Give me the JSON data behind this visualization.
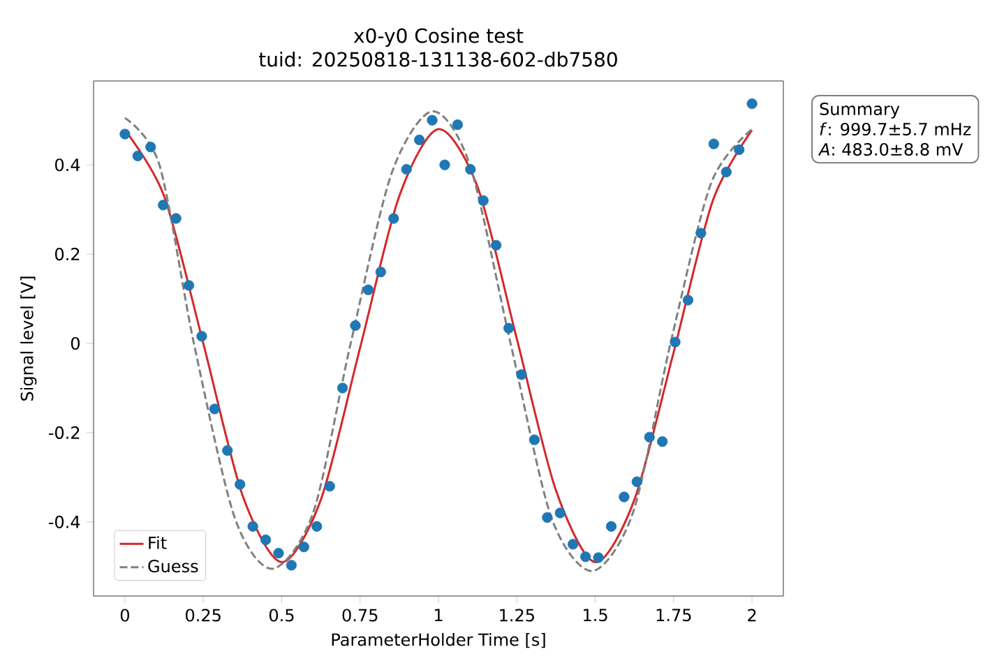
{
  "chart_data": {
    "type": "scatter",
    "title": "x0-y0 Cosine test",
    "subtitle": "tuid: 20250818-131138-602-db7580",
    "xlabel": "ParameterHolder Time [s]",
    "ylabel": "Signal level [V]",
    "annotations": [
      "Summary",
      "*f*: 999.7±5.7 mHz",
      "*A*: 483.0±8.8 mV"
    ],
    "xlim": [
      -0.1,
      2.1
    ],
    "ylim": [
      -0.566,
      0.588
    ],
    "xticks": [
      0,
      0.25,
      0.5,
      0.75,
      1,
      1.25,
      1.5,
      1.75,
      2
    ],
    "yticks": [
      -0.4,
      -0.2,
      0,
      0.2,
      0.4
    ],
    "legend": "bottom left",
    "marker": "circle",
    "series": [
      {
        "color": "#1f77b4",
        "x": [
          0,
          0.041,
          0.082,
          0.122,
          0.163,
          0.204,
          0.245,
          0.286,
          0.327,
          0.367,
          0.408,
          0.449,
          0.49,
          0.531,
          0.571,
          0.612,
          0.653,
          0.694,
          0.735,
          0.776,
          0.816,
          0.857,
          0.898,
          0.939,
          0.98,
          1.02,
          1.061,
          1.102,
          1.143,
          1.184,
          1.224,
          1.265,
          1.306,
          1.347,
          1.388,
          1.429,
          1.469,
          1.51,
          1.551,
          1.592,
          1.633,
          1.673,
          1.714,
          1.755,
          1.796,
          1.837,
          1.878,
          1.918,
          1.959,
          2
        ],
        "values": [
          0.469,
          0.42,
          0.44,
          0.31,
          0.28,
          0.13,
          0.016,
          -0.147,
          -0.24,
          -0.316,
          -0.41,
          -0.44,
          -0.47,
          -0.497,
          -0.456,
          -0.41,
          -0.32,
          -0.1,
          0.04,
          0.12,
          0.16,
          0.28,
          0.39,
          0.456,
          0.5,
          0.4,
          0.49,
          0.39,
          0.32,
          0.22,
          0.034,
          -0.07,
          -0.216,
          -0.39,
          -0.38,
          -0.45,
          -0.478,
          -0.48,
          -0.41,
          -0.344,
          -0.31,
          -0.21,
          -0.22,
          0.003,
          0.097,
          0.247,
          0.447,
          0.384,
          0.434,
          0.537
        ]
      },
      {
        "type": "line",
        "name": "Fit",
        "color": "#d62728",
        "line_style": "solid",
        "marker": "none",
        "x": [
          0,
          0.125,
          0.25,
          0.375,
          0.5,
          0.625,
          0.75,
          0.875,
          1,
          1.125,
          1.25,
          1.375,
          1.5,
          1.625,
          1.75,
          1.875,
          2
        ],
        "values": [
          0.478,
          0.33,
          0.0,
          -0.34,
          -0.49,
          -0.35,
          -0.01,
          0.33,
          0.48,
          0.35,
          0.01,
          -0.33,
          -0.49,
          -0.35,
          -0.02,
          0.32,
          0.478
        ]
      },
      {
        "type": "line",
        "name": "Guess",
        "color": "#808080",
        "line_style": "dashed",
        "marker": "none",
        "x": [
          0,
          0.11,
          0.22,
          0.35,
          0.47,
          0.6,
          0.72,
          0.85,
          0.98,
          1.1,
          1.23,
          1.36,
          1.49,
          1.62,
          1.74,
          1.87,
          2
        ],
        "values": [
          0.505,
          0.4,
          0.0,
          -0.39,
          -0.505,
          -0.38,
          0.0,
          0.38,
          0.52,
          0.4,
          0.0,
          -0.39,
          -0.51,
          -0.38,
          0.0,
          0.36,
          0.48
        ]
      }
    ]
  }
}
